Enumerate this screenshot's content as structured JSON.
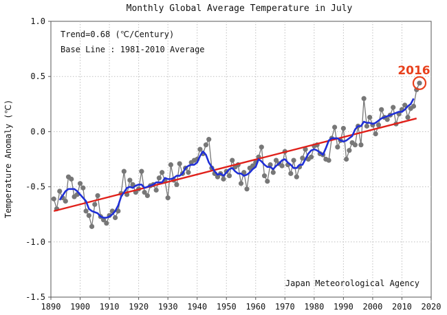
{
  "chart_data": {
    "type": "line",
    "title": "Monthly Global Average Temperature in July",
    "ylabel": "Temperature Anomaly (℃)",
    "xlim": [
      1890,
      2020
    ],
    "ylim": [
      -1.5,
      1.0
    ],
    "x_ticks": [
      "1890",
      "1900",
      "1910",
      "1920",
      "1930",
      "1940",
      "1950",
      "1960",
      "1970",
      "1980",
      "1990",
      "2000",
      "2010",
      "2020"
    ],
    "y_ticks": [
      "1.0",
      "0.5",
      "0.0",
      "-0.5",
      "-1.0",
      "-1.5"
    ],
    "grid": true,
    "annotations": {
      "trend": "Trend=0.68 (℃/Century)",
      "baseline": "Base Line : 1981-2010 Average",
      "source": "Japan Meteorological Agency",
      "highlight_label": "2016",
      "highlight_year": 2016
    },
    "colors": {
      "annual": "#777777",
      "running_mean": "#1f2fd6",
      "trend": "#e0201a",
      "highlight": "#e8401c"
    },
    "series": [
      {
        "type": "points",
        "x": [
          1891,
          1892,
          1893,
          1894,
          1895,
          1896,
          1897,
          1898,
          1899,
          1900,
          1901,
          1902,
          1903,
          1904,
          1905,
          1906,
          1907,
          1908,
          1909,
          1910,
          1911,
          1912,
          1913,
          1914,
          1915,
          1916,
          1917,
          1918,
          1919,
          1920,
          1921,
          1922,
          1923,
          1924,
          1925,
          1926,
          1927,
          1928,
          1929,
          1930,
          1931,
          1932,
          1933,
          1934,
          1935,
          1936,
          1937,
          1938,
          1939,
          1940,
          1941,
          1942,
          1943,
          1944,
          1945,
          1946,
          1947,
          1948,
          1949,
          1950,
          1951,
          1952,
          1953,
          1954,
          1955,
          1956,
          1957,
          1958,
          1959,
          1960,
          1961,
          1962,
          1963,
          1964,
          1965,
          1966,
          1967,
          1968,
          1969,
          1970,
          1971,
          1972,
          1973,
          1974,
          1975,
          1976,
          1977,
          1978,
          1979,
          1980,
          1981,
          1982,
          1983,
          1984,
          1985,
          1986,
          1987,
          1988,
          1989,
          1990,
          1991,
          1992,
          1993,
          1994,
          1995,
          1996,
          1997,
          1998,
          1999,
          2000,
          2001,
          2002,
          2003,
          2004,
          2005,
          2006,
          2007,
          2008,
          2009,
          2010,
          2011,
          2012,
          2013,
          2014,
          2015,
          2016
        ],
        "values": [
          -0.61,
          -0.7,
          -0.54,
          -0.6,
          -0.63,
          -0.41,
          -0.43,
          -0.59,
          -0.57,
          -0.47,
          -0.51,
          -0.72,
          -0.76,
          -0.86,
          -0.66,
          -0.58,
          -0.77,
          -0.8,
          -0.83,
          -0.76,
          -0.72,
          -0.78,
          -0.72,
          -0.56,
          -0.36,
          -0.57,
          -0.44,
          -0.48,
          -0.55,
          -0.52,
          -0.36,
          -0.55,
          -0.58,
          -0.49,
          -0.48,
          -0.53,
          -0.42,
          -0.37,
          -0.45,
          -0.6,
          -0.3,
          -0.44,
          -0.48,
          -0.29,
          -0.38,
          -0.33,
          -0.37,
          -0.28,
          -0.26,
          -0.25,
          -0.16,
          -0.2,
          -0.12,
          -0.07,
          -0.33,
          -0.38,
          -0.41,
          -0.38,
          -0.43,
          -0.36,
          -0.4,
          -0.26,
          -0.32,
          -0.3,
          -0.47,
          -0.37,
          -0.52,
          -0.33,
          -0.31,
          -0.28,
          -0.23,
          -0.14,
          -0.4,
          -0.45,
          -0.3,
          -0.37,
          -0.26,
          -0.29,
          -0.31,
          -0.18,
          -0.3,
          -0.38,
          -0.26,
          -0.41,
          -0.32,
          -0.24,
          -0.16,
          -0.25,
          -0.23,
          -0.13,
          -0.12,
          -0.2,
          -0.21,
          -0.25,
          -0.26,
          -0.06,
          0.04,
          -0.14,
          -0.08,
          0.03,
          -0.25,
          -0.17,
          -0.1,
          -0.12,
          0.05,
          -0.12,
          0.3,
          0.05,
          0.13,
          0.06,
          -0.02,
          0.06,
          0.2,
          0.13,
          0.11,
          0.15,
          0.22,
          0.07,
          0.16,
          0.2,
          0.24,
          0.13,
          0.21,
          0.23,
          0.38,
          0.44
        ]
      },
      {
        "type": "running_mean",
        "x": [
          1893,
          1894,
          1895,
          1896,
          1897,
          1898,
          1899,
          1900,
          1901,
          1902,
          1903,
          1904,
          1905,
          1906,
          1907,
          1908,
          1909,
          1910,
          1911,
          1912,
          1913,
          1914,
          1915,
          1916,
          1917,
          1918,
          1919,
          1920,
          1921,
          1922,
          1923,
          1924,
          1925,
          1926,
          1927,
          1928,
          1929,
          1930,
          1931,
          1932,
          1933,
          1934,
          1935,
          1936,
          1937,
          1938,
          1939,
          1940,
          1941,
          1942,
          1943,
          1944,
          1945,
          1946,
          1947,
          1948,
          1949,
          1950,
          1951,
          1952,
          1953,
          1954,
          1955,
          1956,
          1957,
          1958,
          1959,
          1960,
          1961,
          1962,
          1963,
          1964,
          1965,
          1966,
          1967,
          1968,
          1969,
          1970,
          1971,
          1972,
          1973,
          1974,
          1975,
          1976,
          1977,
          1978,
          1979,
          1980,
          1981,
          1982,
          1983,
          1984,
          1985,
          1986,
          1987,
          1988,
          1989,
          1990,
          1991,
          1992,
          1993,
          1994,
          1995,
          1996,
          1997,
          1998,
          1999,
          2000,
          2001,
          2002,
          2003,
          2004,
          2005,
          2006,
          2007,
          2008,
          2009,
          2010,
          2011,
          2012,
          2013,
          2014
        ],
        "values": [
          -0.62,
          -0.58,
          -0.54,
          -0.52,
          -0.52,
          -0.52,
          -0.54,
          -0.57,
          -0.6,
          -0.63,
          -0.7,
          -0.72,
          -0.73,
          -0.74,
          -0.77,
          -0.78,
          -0.78,
          -0.77,
          -0.75,
          -0.72,
          -0.67,
          -0.59,
          -0.55,
          -0.51,
          -0.5,
          -0.51,
          -0.49,
          -0.48,
          -0.48,
          -0.51,
          -0.5,
          -0.49,
          -0.48,
          -0.46,
          -0.46,
          -0.46,
          -0.42,
          -0.43,
          -0.43,
          -0.42,
          -0.4,
          -0.4,
          -0.38,
          -0.33,
          -0.31,
          -0.3,
          -0.3,
          -0.28,
          -0.22,
          -0.18,
          -0.21,
          -0.28,
          -0.32,
          -0.36,
          -0.39,
          -0.38,
          -0.4,
          -0.37,
          -0.34,
          -0.33,
          -0.36,
          -0.38,
          -0.38,
          -0.4,
          -0.39,
          -0.37,
          -0.34,
          -0.32,
          -0.25,
          -0.27,
          -0.3,
          -0.32,
          -0.32,
          -0.34,
          -0.31,
          -0.29,
          -0.26,
          -0.25,
          -0.28,
          -0.3,
          -0.33,
          -0.33,
          -0.3,
          -0.3,
          -0.25,
          -0.2,
          -0.17,
          -0.16,
          -0.17,
          -0.19,
          -0.21,
          -0.15,
          -0.08,
          -0.06,
          -0.06,
          -0.06,
          -0.08,
          -0.09,
          -0.08,
          -0.06,
          -0.04,
          0.02,
          0.05,
          0.05,
          0.09,
          0.08,
          0.08,
          0.07,
          0.08,
          0.1,
          0.12,
          0.13,
          0.14,
          0.15,
          0.16,
          0.17,
          0.18,
          0.18,
          0.2,
          0.23,
          0.25,
          0.3
        ]
      },
      {
        "type": "trend",
        "x": [
          1891,
          2015
        ],
        "values": [
          -0.72,
          0.12
        ]
      }
    ]
  }
}
